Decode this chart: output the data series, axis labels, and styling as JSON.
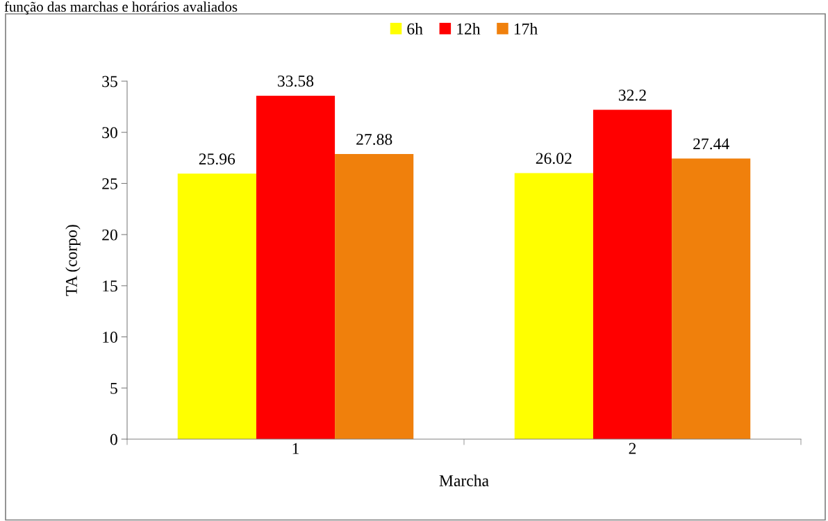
{
  "chart_data": {
    "type": "bar",
    "xlabel": "Marcha",
    "ylabel": "TA (corpo)",
    "categories": [
      "1",
      "2"
    ],
    "series": [
      {
        "name": "6h",
        "color": "#ffff00",
        "values": [
          25.96,
          26.02
        ]
      },
      {
        "name": "12h",
        "color": "#ff0000",
        "values": [
          33.58,
          32.2
        ]
      },
      {
        "name": "17h",
        "color": "#f0800c",
        "values": [
          27.88,
          27.44
        ]
      }
    ],
    "ylim": [
      0,
      35
    ],
    "yticks": [
      0,
      5,
      10,
      15,
      20,
      25,
      30,
      35
    ],
    "data_labels": true,
    "legend": "top",
    "grid": false,
    "annotations": [
      "função das marchas e horários avaliados"
    ]
  }
}
